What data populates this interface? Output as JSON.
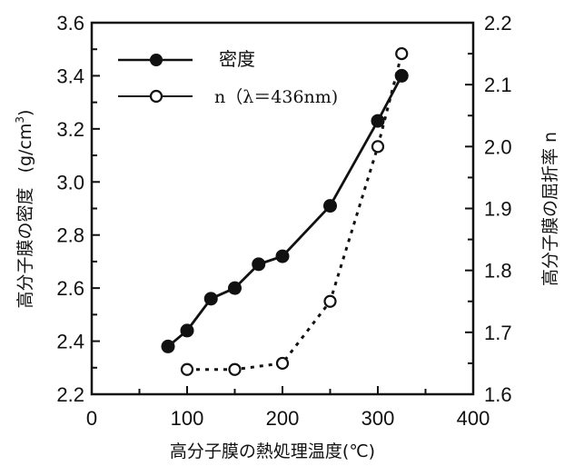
{
  "chart_data": {
    "type": "line",
    "title": "",
    "xlabel": "高分子膜の熱処理温度(℃)",
    "ylabel": "高分子膜の密度 (g/cm³)",
    "ylabel_main": "高分子膜の密度",
    "ylabel_unit": "(g/cm",
    "ylabel_sup": "3",
    "ylabel_close": ")",
    "y2label": "高分子膜の屈折率 n",
    "xlim": [
      0,
      400
    ],
    "ylim": [
      2.2,
      3.6
    ],
    "y2lim": [
      1.6,
      2.2
    ],
    "xticks": [
      0,
      100,
      200,
      300,
      400
    ],
    "xtick_labels": [
      "0",
      "100",
      "200",
      "300",
      "400"
    ],
    "yticks": [
      2.2,
      2.4,
      2.6,
      2.8,
      3.0,
      3.2,
      3.4,
      3.6
    ],
    "ytick_labels": [
      "2.2",
      "2.4",
      "2.6",
      "2.8",
      "3.0",
      "3.2",
      "3.4",
      "3.6"
    ],
    "y2ticks": [
      1.6,
      1.7,
      1.8,
      1.9,
      2.0,
      2.1,
      2.2
    ],
    "y2tick_labels": [
      "1.6",
      "1.7",
      "1.8",
      "1.9",
      "2.0",
      "2.1",
      "2.2"
    ],
    "grid": false,
    "legend_position": "upper left",
    "series": [
      {
        "name": "密度",
        "axis": "left",
        "marker": "filled-circle",
        "line": "solid",
        "x": [
          80,
          100,
          125,
          150,
          175,
          200,
          250,
          300,
          325
        ],
        "values": [
          2.38,
          2.44,
          2.56,
          2.6,
          2.69,
          2.72,
          2.91,
          3.23,
          3.4
        ]
      },
      {
        "name": "n (λ=436nm)",
        "axis": "right",
        "marker": "open-circle",
        "line": "dotted",
        "x": [
          100,
          150,
          200,
          250,
          300,
          325
        ],
        "values": [
          1.64,
          1.64,
          1.65,
          1.75,
          2.0,
          2.15
        ]
      }
    ]
  },
  "legend": {
    "items": [
      {
        "label": "密度"
      },
      {
        "label": "n（λ＝436nm)"
      }
    ]
  }
}
